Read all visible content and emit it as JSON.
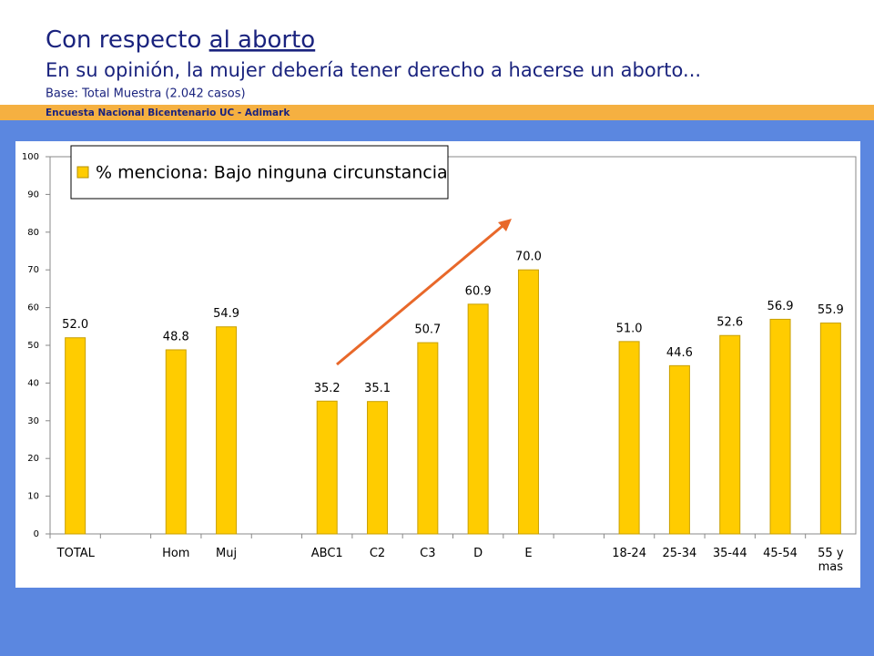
{
  "header": {
    "title_start": "Con respecto ",
    "title_underlined": "al aborto",
    "subtitle": "En su opinión, la mujer debería tener derecho a hacerse un aborto...",
    "base": "Base: Total Muestra (2.042 casos)",
    "banner": "Encuesta Nacional Bicentenario UC - Adimark"
  },
  "chart_data": {
    "type": "bar",
    "categories": [
      "TOTAL",
      null,
      "Hom",
      "Muj",
      null,
      "ABC1",
      "C2",
      "C3",
      "D",
      "E",
      null,
      "18-24",
      "25-34",
      "35-44",
      "45-54",
      "55 y mas"
    ],
    "series": [
      {
        "name": "% menciona: Bajo ninguna circunstancia",
        "color": "#ffcc00",
        "values": [
          52.0,
          null,
          48.8,
          54.9,
          null,
          35.2,
          35.1,
          50.7,
          60.9,
          70.0,
          null,
          51.0,
          44.6,
          52.6,
          56.9,
          55.9
        ],
        "value_labels": [
          "52.0",
          null,
          "48.8",
          "54.9",
          null,
          "35.2",
          "35.1",
          "50.7",
          "60.9",
          "70.0",
          null,
          "51.0",
          "44.6",
          "52.6",
          "56.9",
          "55.9"
        ]
      }
    ],
    "ylim": [
      0,
      100
    ],
    "yticks": [
      0,
      10,
      20,
      30,
      40,
      50,
      60,
      70,
      80,
      90,
      100
    ],
    "grid": false,
    "legend": "top-left"
  }
}
